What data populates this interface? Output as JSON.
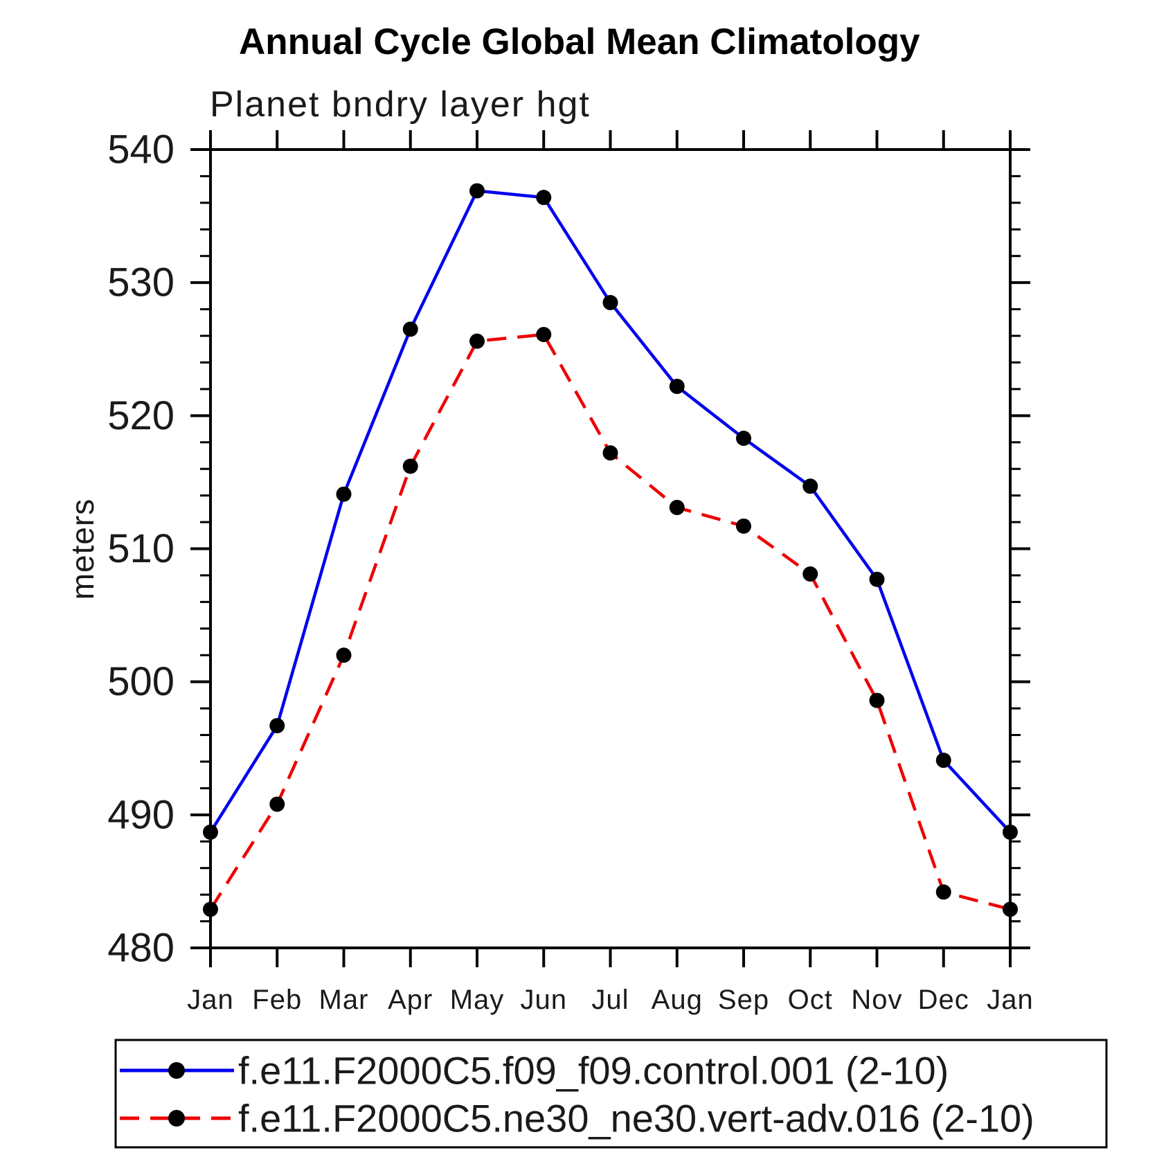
{
  "title": "Annual Cycle Global Mean Climatology",
  "subtitle": "Planet bndry layer hgt",
  "y_axis": {
    "label": "meters",
    "tick_labels": [
      "480",
      "490",
      "500",
      "510",
      "520",
      "530",
      "540"
    ]
  },
  "x_axis": {
    "tick_labels": [
      "Jan",
      "Feb",
      "Mar",
      "Apr",
      "May",
      "Jun",
      "Jul",
      "Aug",
      "Sep",
      "Oct",
      "Nov",
      "Dec",
      "Jan"
    ]
  },
  "legend": {
    "entries": [
      {
        "label": "f.e11.F2000C5.f09_f09.control.001 (2-10)",
        "color": "#0000ee",
        "line_style": "solid",
        "marker": "filled-circle"
      },
      {
        "label": "f.e11.F2000C5.ne30_ne30.vert-adv.016 (2-10)",
        "color": "#ee0000",
        "line_style": "dashed",
        "marker": "filled-circle"
      }
    ]
  },
  "chart_data": {
    "type": "line",
    "title": "Annual Cycle Global Mean Climatology",
    "subtitle": "Planet bndry layer hgt",
    "ylabel": "meters",
    "ylim": [
      480,
      540
    ],
    "y_major_step": 10,
    "y_minor_step": 2,
    "grid": false,
    "legend_position": "bottom",
    "x": [
      "Jan",
      "Feb",
      "Mar",
      "Apr",
      "May",
      "Jun",
      "Jul",
      "Aug",
      "Sep",
      "Oct",
      "Nov",
      "Dec",
      "Jan"
    ],
    "series": [
      {
        "name": "f.e11.F2000C5.f09_f09.control.001 (2-10)",
        "color": "#0000ee",
        "line_style": "solid",
        "marker": "filled-circle",
        "values": [
          488.7,
          496.7,
          514.1,
          526.5,
          536.9,
          536.4,
          528.5,
          522.2,
          518.3,
          514.7,
          507.7,
          494.1,
          488.7
        ]
      },
      {
        "name": "f.e11.F2000C5.ne30_ne30.vert-adv.016 (2-10)",
        "color": "#ee0000",
        "line_style": "dashed",
        "marker": "filled-circle",
        "values": [
          482.9,
          490.8,
          502.0,
          516.2,
          525.6,
          526.1,
          517.2,
          513.1,
          511.7,
          508.1,
          498.6,
          484.2,
          482.9
        ]
      }
    ]
  }
}
